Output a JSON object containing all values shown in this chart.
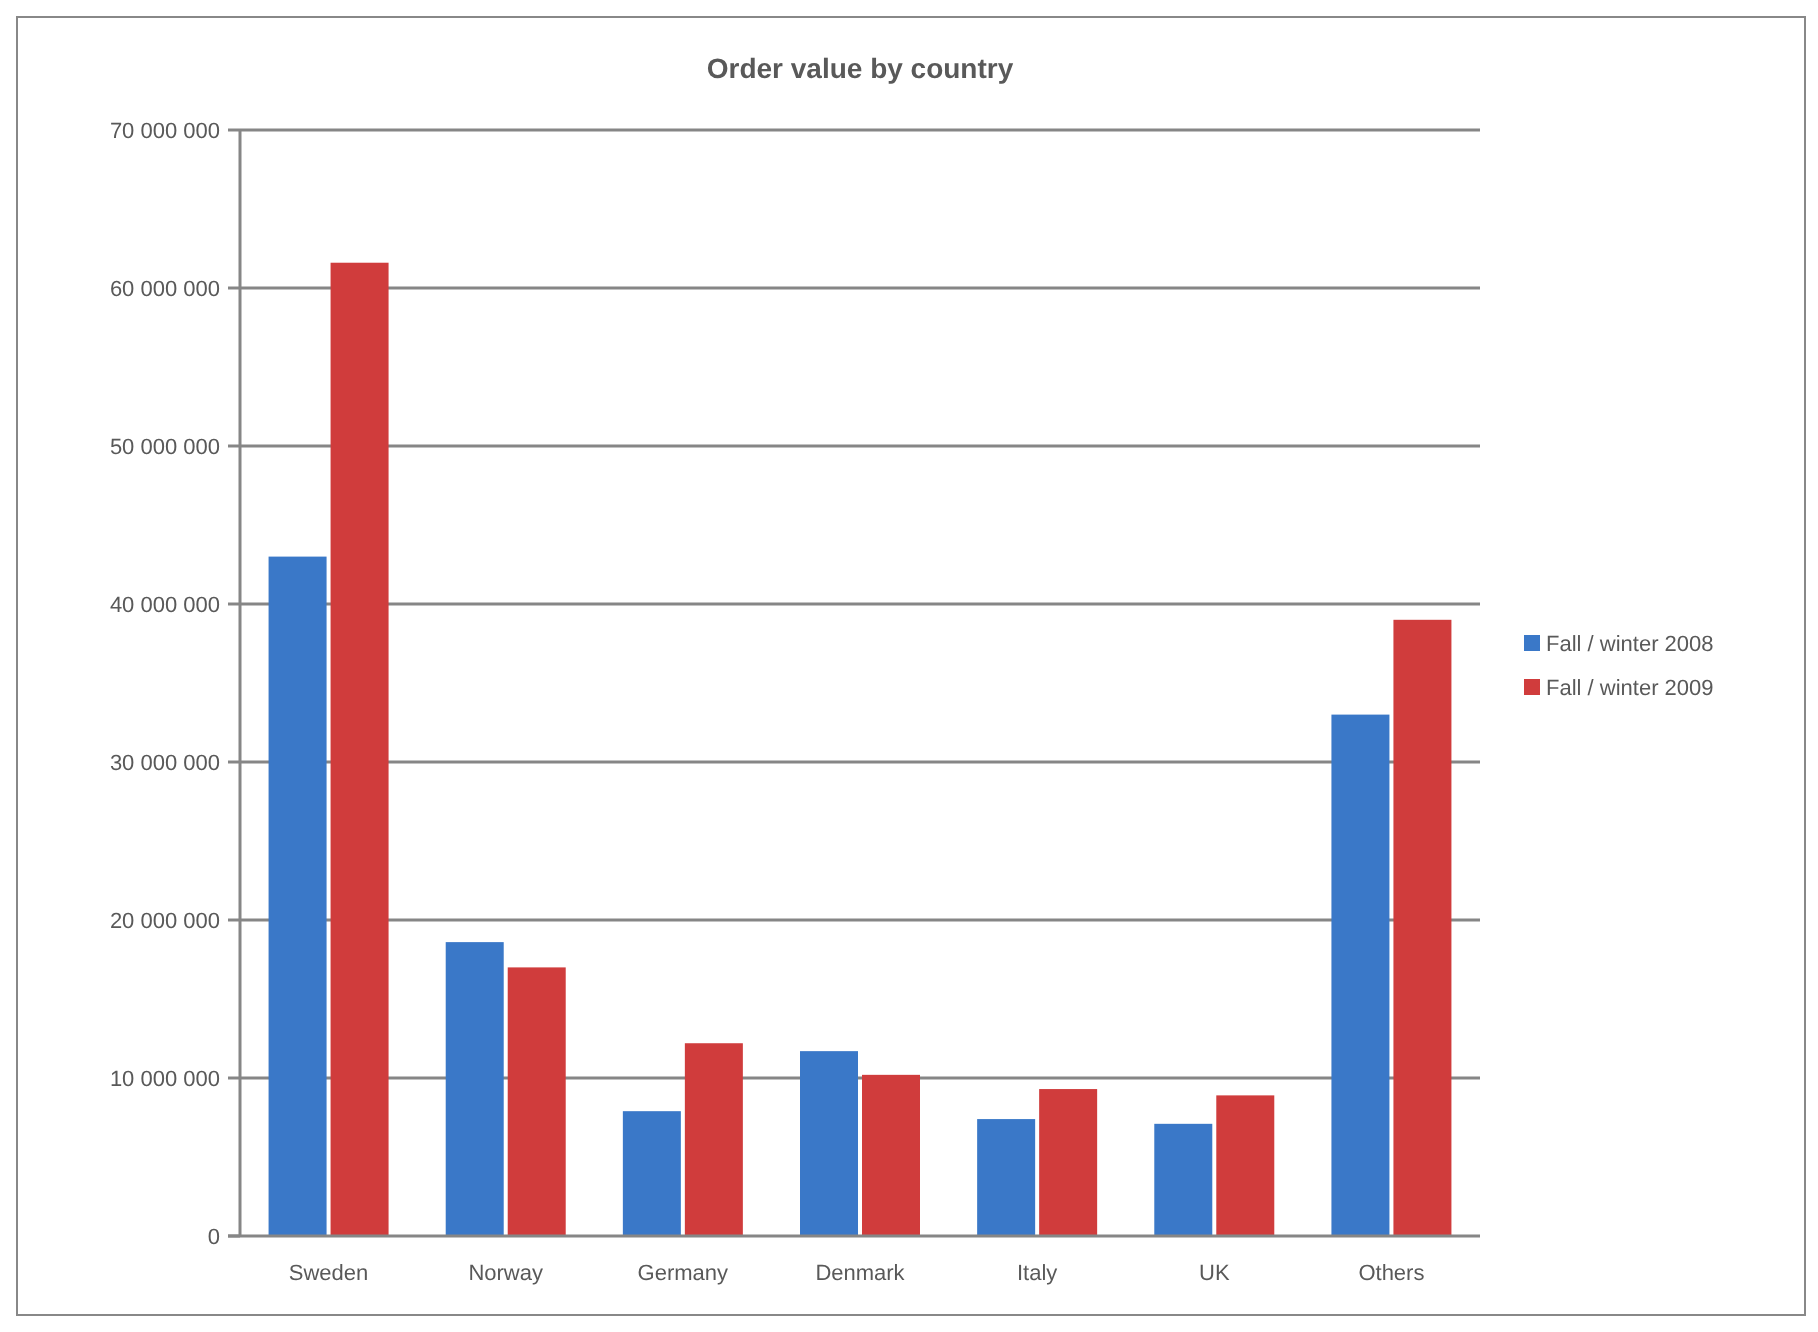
{
  "chart_data": {
    "type": "bar",
    "title": "Order value by  country",
    "categories": [
      "Sweden",
      "Norway",
      "Germany",
      "Denmark",
      "Italy",
      "UK",
      "Others"
    ],
    "series": [
      {
        "name": "Fall / winter  2008",
        "color": "#3a78c8",
        "values": [
          43000000,
          18600000,
          7900000,
          11700000,
          7400000,
          7100000,
          33000000
        ]
      },
      {
        "name": "Fall / winter  2009",
        "color": "#d03c3c",
        "values": [
          61600000,
          17000000,
          12200000,
          10200000,
          9300000,
          8900000,
          39000000
        ]
      }
    ],
    "ylim": [
      0,
      70000000
    ],
    "yticks": [
      {
        "value": 0,
        "label": "0"
      },
      {
        "value": 10000000,
        "label": "10 000 000"
      },
      {
        "value": 20000000,
        "label": "20 000 000"
      },
      {
        "value": 30000000,
        "label": "30 000 000"
      },
      {
        "value": 40000000,
        "label": "40 000 000"
      },
      {
        "value": 50000000,
        "label": "50 000 000"
      },
      {
        "value": 60000000,
        "label": "60 000 000"
      },
      {
        "value": 70000000,
        "label": "70 000 000"
      }
    ],
    "grid": "y",
    "legend": "right"
  }
}
